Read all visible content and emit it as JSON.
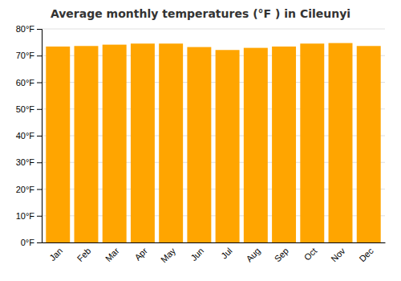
{
  "chart_data": {
    "type": "bar",
    "title": "Average monthly temperatures (°F ) in Cileunyi",
    "categories": [
      "Jan",
      "Feb",
      "Mar",
      "Apr",
      "May",
      "Jun",
      "Jul",
      "Aug",
      "Sep",
      "Oct",
      "Nov",
      "Dec"
    ],
    "values": [
      73.4,
      73.6,
      74.1,
      74.5,
      74.5,
      73.2,
      72.1,
      72.9,
      73.4,
      74.5,
      74.7,
      73.6
    ],
    "color": "#FFA500",
    "ylim": [
      0,
      80
    ],
    "yticks": [
      {
        "value": 0,
        "label": "0°F"
      },
      {
        "value": 10,
        "label": "10°F"
      },
      {
        "value": 20,
        "label": "20°F"
      },
      {
        "value": 30,
        "label": "30°F"
      },
      {
        "value": 40,
        "label": "40°F"
      },
      {
        "value": 50,
        "label": "50°F"
      },
      {
        "value": 60,
        "label": "60°F"
      },
      {
        "value": 70,
        "label": "70°F"
      },
      {
        "value": 80,
        "label": "80°F"
      }
    ],
    "grid": true
  }
}
